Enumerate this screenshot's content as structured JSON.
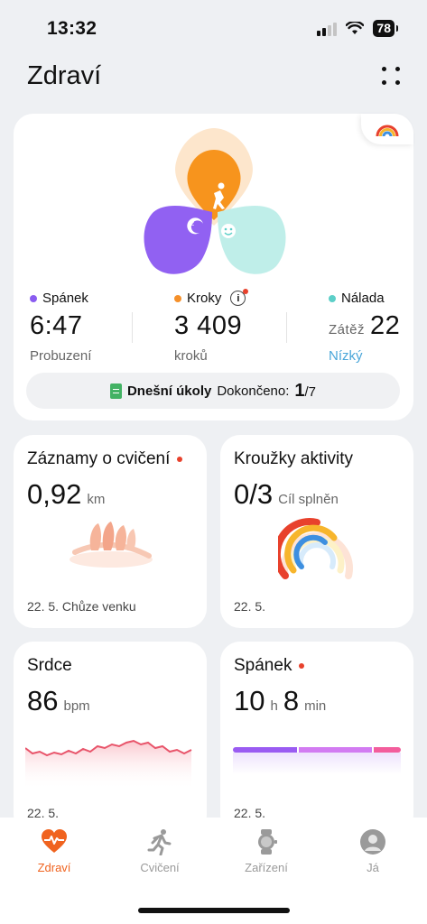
{
  "status": {
    "time": "13:32",
    "battery": "78"
  },
  "header": {
    "title": "Zdraví"
  },
  "summary": {
    "sleep": {
      "label": "Spánek",
      "value": "6:47",
      "sub": "Probuzení",
      "color": "#8a5cf0"
    },
    "steps": {
      "label": "Kroky",
      "value": "3 409",
      "sub": "kroků",
      "color": "#f5902a"
    },
    "mood": {
      "label": "Nálada",
      "prefix": "Zátěž",
      "value": "22",
      "sub": "Nízký",
      "color": "#5ccfc8"
    },
    "tasks": {
      "title": "Dnešní úkoly",
      "done_label": "Dokončeno:",
      "done": "1",
      "total": "/7"
    }
  },
  "exercise": {
    "title": "Záznamy o cvičení",
    "value": "0,92",
    "unit": "km",
    "footer": "22. 5. Chůze venku"
  },
  "rings": {
    "title": "Kroužky aktivity",
    "value": "0/3",
    "sub": "Cíl splněn",
    "footer": "22. 5."
  },
  "heart": {
    "title": "Srdce",
    "value": "86",
    "unit": "bpm",
    "footer": "22. 5."
  },
  "sleep": {
    "title": "Spánek",
    "hours": "10",
    "h_unit": "h",
    "minutes": "8",
    "m_unit": "min",
    "footer": "22. 5."
  },
  "nav": [
    {
      "label": "Zdraví",
      "icon": "heart-pulse-icon",
      "active": true
    },
    {
      "label": "Cvičení",
      "icon": "running-icon",
      "active": false
    },
    {
      "label": "Zařízení",
      "icon": "watch-icon",
      "active": false
    },
    {
      "label": "Já",
      "icon": "profile-icon",
      "active": false
    }
  ],
  "colors": {
    "accent": "#f0631f",
    "info_link": "#4aa6d9"
  }
}
